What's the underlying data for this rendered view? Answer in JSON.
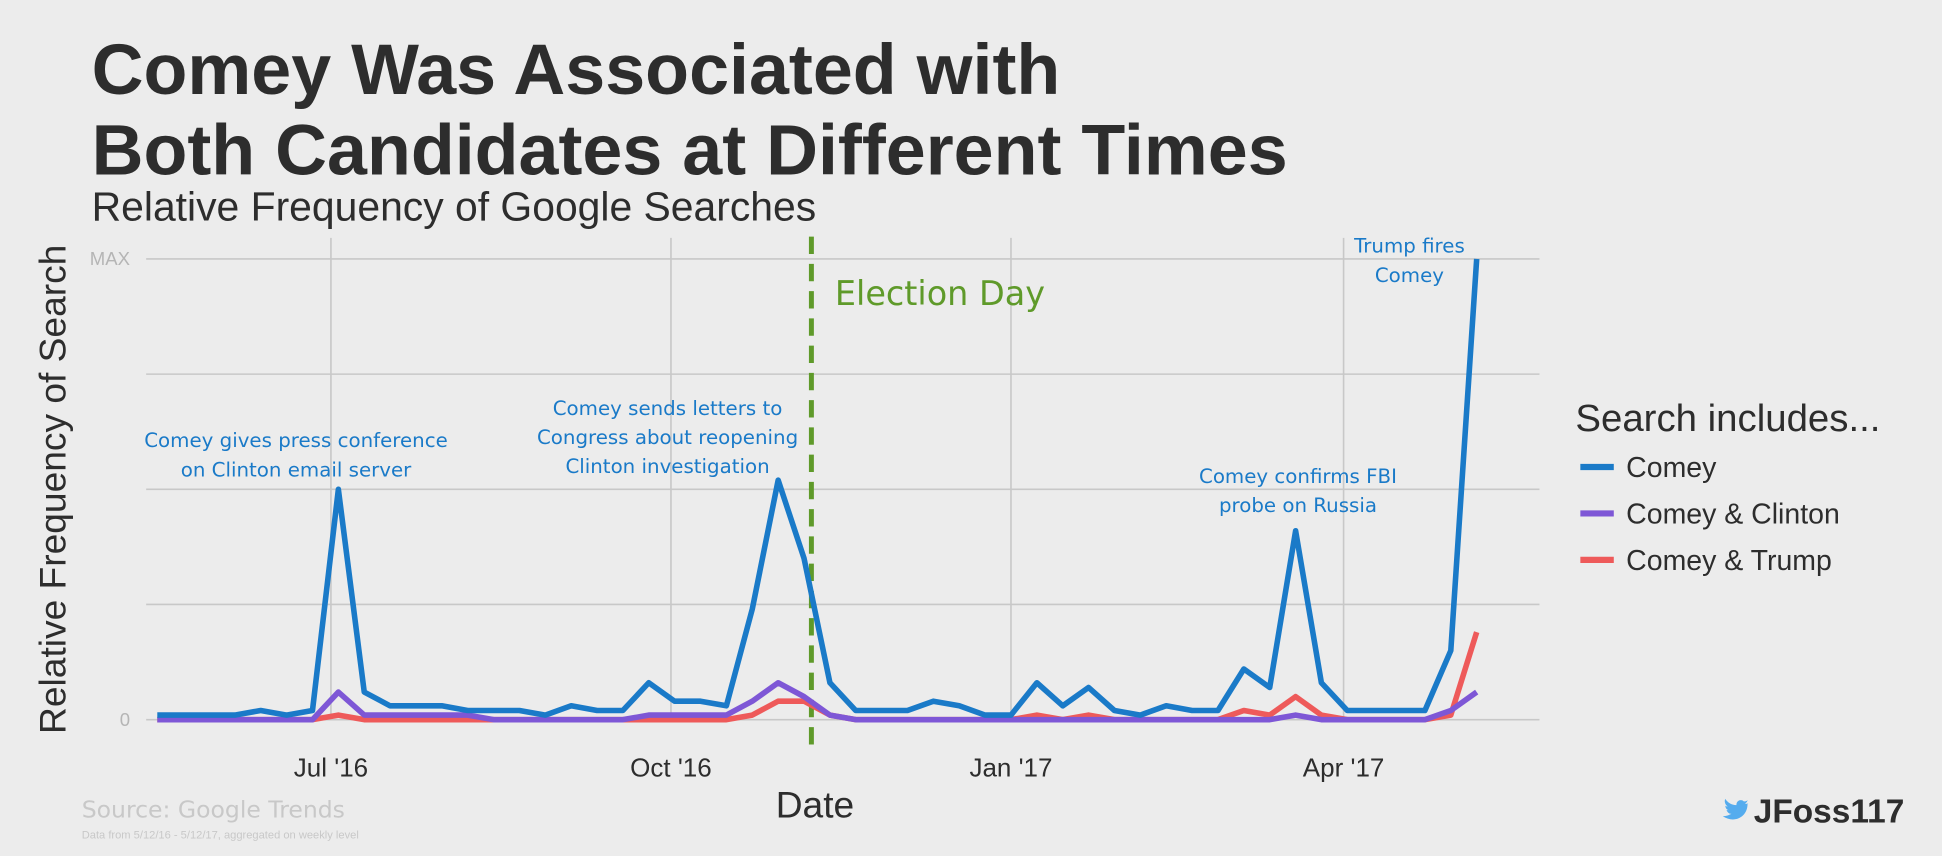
{
  "chart_data": {
    "type": "line",
    "title": [
      "Comey Was Associated with",
      "Both Candidates at Different Times"
    ],
    "subtitle": "Relative Frequency of Google Searches",
    "y_label": "Relative Frequency of Search",
    "x_label": "Date",
    "x": [
      "2016-05-15",
      "2016-05-22",
      "2016-05-29",
      "2016-06-05",
      "2016-06-12",
      "2016-06-19",
      "2016-06-26",
      "2016-07-03",
      "2016-07-10",
      "2016-07-17",
      "2016-07-24",
      "2016-07-31",
      "2016-08-07",
      "2016-08-14",
      "2016-08-21",
      "2016-08-28",
      "2016-09-04",
      "2016-09-11",
      "2016-09-18",
      "2016-09-25",
      "2016-10-02",
      "2016-10-09",
      "2016-10-16",
      "2016-10-23",
      "2016-10-30",
      "2016-11-06",
      "2016-11-13",
      "2016-11-20",
      "2016-11-27",
      "2016-12-04",
      "2016-12-11",
      "2016-12-18",
      "2016-12-25",
      "2017-01-01",
      "2017-01-08",
      "2017-01-15",
      "2017-01-22",
      "2017-01-29",
      "2017-02-05",
      "2017-02-12",
      "2017-02-19",
      "2017-02-26",
      "2017-03-05",
      "2017-03-12",
      "2017-03-19",
      "2017-03-26",
      "2017-04-02",
      "2017-04-09",
      "2017-04-16",
      "2017-04-23",
      "2017-04-30",
      "2017-05-07"
    ],
    "series": [
      {
        "name": "Comey",
        "color": "#1a7ac8",
        "values": [
          1,
          1,
          1,
          1,
          2,
          1,
          2,
          50,
          6,
          3,
          3,
          3,
          2,
          2,
          2,
          1,
          3,
          2,
          2,
          8,
          4,
          4,
          3,
          24,
          52,
          35,
          8,
          2,
          2,
          2,
          4,
          3,
          1,
          1,
          8,
          3,
          7,
          2,
          1,
          3,
          2,
          2,
          11,
          7,
          41,
          8,
          2,
          2,
          2,
          2,
          15,
          100
        ]
      },
      {
        "name": "Comey & Clinton",
        "color": "#7e57d6",
        "values": [
          0,
          0,
          0,
          0,
          0,
          0,
          0,
          6,
          1,
          1,
          1,
          1,
          1,
          0,
          0,
          0,
          0,
          0,
          0,
          1,
          1,
          1,
          1,
          4,
          8,
          5,
          1,
          0,
          0,
          0,
          0,
          0,
          0,
          0,
          0,
          0,
          0,
          0,
          0,
          0,
          0,
          0,
          0,
          0,
          1,
          0,
          0,
          0,
          0,
          0,
          2,
          6
        ]
      },
      {
        "name": "Comey & Trump",
        "color": "#ee5a5a",
        "values": [
          0,
          0,
          0,
          0,
          0,
          0,
          0,
          1,
          0,
          0,
          0,
          0,
          0,
          0,
          0,
          0,
          0,
          0,
          0,
          0,
          0,
          0,
          0,
          1,
          4,
          4,
          1,
          0,
          0,
          0,
          0,
          0,
          0,
          0,
          1,
          0,
          1,
          0,
          0,
          0,
          0,
          0,
          2,
          1,
          5,
          1,
          0,
          0,
          0,
          0,
          1,
          19
        ]
      }
    ],
    "xlim": [
      "2016-05-12",
      "2017-05-24"
    ],
    "xticks": [
      {
        "value": "2016-07-01",
        "label": "Jul '16"
      },
      {
        "value": "2016-10-01",
        "label": "Oct '16"
      },
      {
        "value": "2017-01-01",
        "label": "Jan '17"
      },
      {
        "value": "2017-04-01",
        "label": "Apr '17"
      }
    ],
    "ylim": [
      0,
      100
    ],
    "yticks": [
      0,
      {
        "value": 100,
        "label": "MAX"
      }
    ],
    "ygrid": [
      0,
      25,
      50,
      75,
      100
    ],
    "grid": true,
    "legend_title": "Search includes...",
    "legend": "right",
    "event": {
      "text": "Election Day",
      "x": "2016-11-08",
      "color": "#5f9a2a"
    },
    "annotations": [
      {
        "lines": [
          "Comey gives press conference",
          "on Clinton email server"
        ]
      },
      {
        "lines": [
          "Comey sends letters to",
          "Congress about reopening",
          "Clinton investigation"
        ]
      },
      {
        "lines": [
          "Comey confirms FBI",
          "probe on Russia"
        ]
      },
      {
        "lines": [
          "Trump fires",
          "Comey"
        ]
      }
    ],
    "source": "Source: Google Trends",
    "note": "Data from 5/12/16 - 5/12/17, aggregated on weekly level",
    "handle": "JFoss117"
  }
}
